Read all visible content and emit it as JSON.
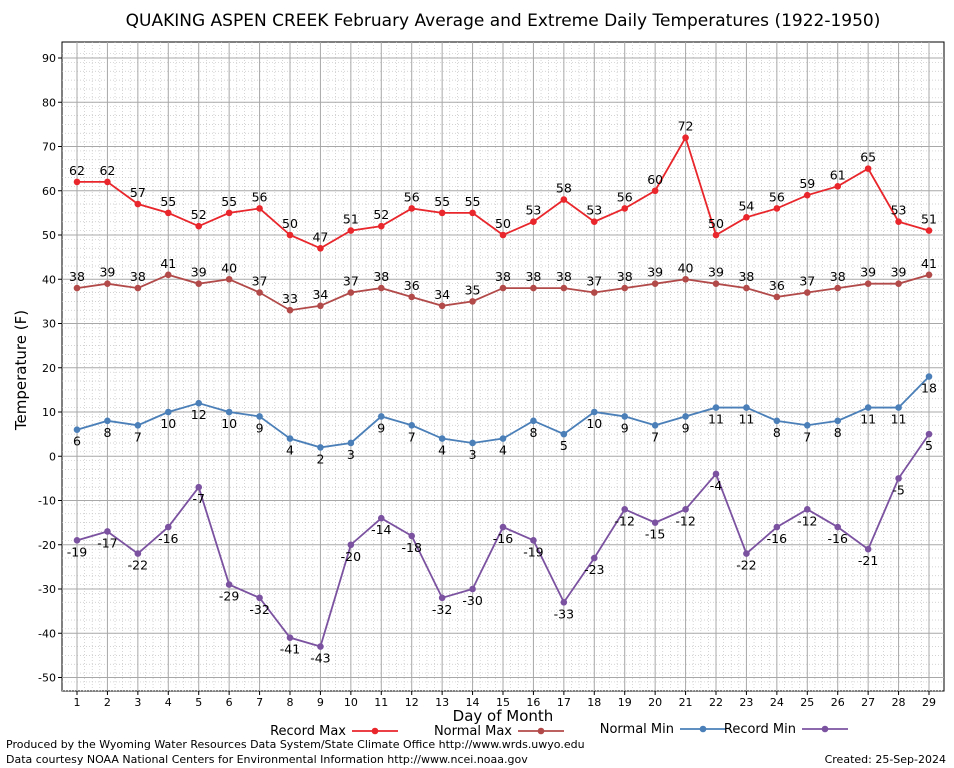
{
  "chart_data": {
    "type": "line",
    "title": "QUAKING ASPEN CREEK February Average and Extreme Daily Temperatures (1922-1950)",
    "xlabel": "Day of Month",
    "ylabel": "Temperature (F)",
    "x": [
      1,
      2,
      3,
      4,
      5,
      6,
      7,
      8,
      9,
      10,
      11,
      12,
      13,
      14,
      15,
      16,
      17,
      18,
      19,
      20,
      21,
      22,
      23,
      24,
      25,
      26,
      27,
      28,
      29
    ],
    "ylim": [
      -55,
      92
    ],
    "yticks": [
      90,
      80,
      70,
      60,
      50,
      40,
      30,
      20,
      10,
      0,
      -10,
      -20,
      -30,
      -40,
      -50
    ],
    "grid": true,
    "legend_position": "bottom",
    "series": [
      {
        "name": "Record Max",
        "color": "#e8262b",
        "label_pos": "above",
        "values": [
          62,
          62,
          57,
          55,
          52,
          55,
          56,
          50,
          47,
          51,
          52,
          56,
          55,
          55,
          50,
          53,
          58,
          53,
          56,
          60,
          72,
          50,
          54,
          56,
          59,
          61,
          65,
          53,
          51
        ]
      },
      {
        "name": "Normal Max",
        "color": "#b24a4a",
        "label_pos": "above",
        "values": [
          38,
          39,
          38,
          41,
          39,
          40,
          37,
          33,
          34,
          37,
          38,
          36,
          34,
          35,
          38,
          38,
          38,
          37,
          38,
          39,
          40,
          39,
          38,
          36,
          37,
          38,
          39,
          39,
          41
        ]
      },
      {
        "name": "Normal Min",
        "color": "#4a7fb8",
        "label_pos": "below",
        "values": [
          6,
          8,
          7,
          10,
          12,
          10,
          9,
          4,
          2,
          3,
          9,
          7,
          4,
          3,
          4,
          8,
          5,
          10,
          9,
          7,
          9,
          11,
          11,
          8,
          7,
          8,
          11,
          11,
          18
        ]
      },
      {
        "name": "Record Min",
        "color": "#7b52a0",
        "label_pos": "below",
        "values": [
          -19,
          -17,
          -22,
          -16,
          -7,
          -29,
          -32,
          -41,
          -43,
          -20,
          -14,
          -18,
          -32,
          -30,
          -16,
          -19,
          -33,
          -23,
          -12,
          -15,
          -12,
          -4,
          -22,
          -16,
          -12,
          -16,
          -21,
          -5,
          5
        ]
      }
    ]
  },
  "footer": {
    "line1": "Produced by the Wyoming Water Resources Data System/State Climate Office http://www.wrds.uwyo.edu",
    "line2": "Data courtesy NOAA National Centers for Environmental Information http://www.ncei.noaa.gov",
    "created": "Created:  25-Sep-2024"
  }
}
